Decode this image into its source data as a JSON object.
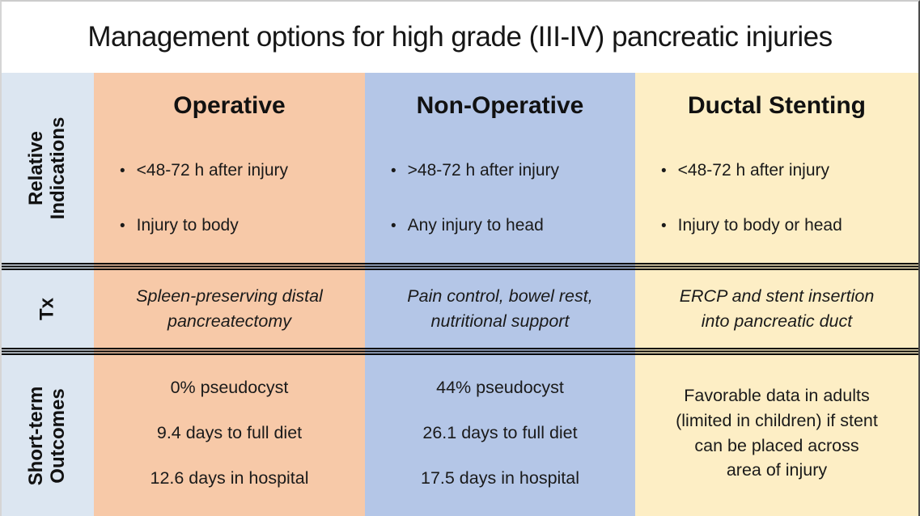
{
  "title": "Management options for high grade (III-IV) pancreatic injuries",
  "colors": {
    "operative_bg": "#f7c9a8",
    "non_operative_bg": "#b4c6e7",
    "ductal_stenting_bg": "#fdeec5",
    "row_label_bg": "#dce6f1",
    "separator": "#000000",
    "text": "#1a1a1a"
  },
  "bullet_glyph": "•",
  "row_labels": {
    "indications": [
      "Relative",
      "Indications"
    ],
    "treatment": "Tx",
    "outcomes": [
      "Short-term",
      "Outcomes"
    ]
  },
  "columns": [
    {
      "header": "Operative",
      "indications": [
        "<48-72 h after injury",
        "Injury to body"
      ],
      "treatment": "Spleen-preserving distal pancreatectomy",
      "outcomes": [
        "0% pseudocyst",
        "9.4 days to full diet",
        "12.6 days in hospital"
      ]
    },
    {
      "header": "Non-Operative",
      "indications": [
        ">48-72 h after injury",
        "Any injury to head"
      ],
      "treatment": "Pain control, bowel rest, nutritional support",
      "outcomes": [
        "44% pseudocyst",
        "26.1 days to full diet",
        "17.5 days in hospital"
      ]
    },
    {
      "header": "Ductal Stenting",
      "indications": [
        "<48-72 h after injury",
        "Injury to body or head"
      ],
      "treatment": "ERCP and stent insertion into pancreatic duct",
      "outcomes": [
        "Favorable data in adults (limited in children) if stent can be placed across area of injury"
      ]
    }
  ]
}
